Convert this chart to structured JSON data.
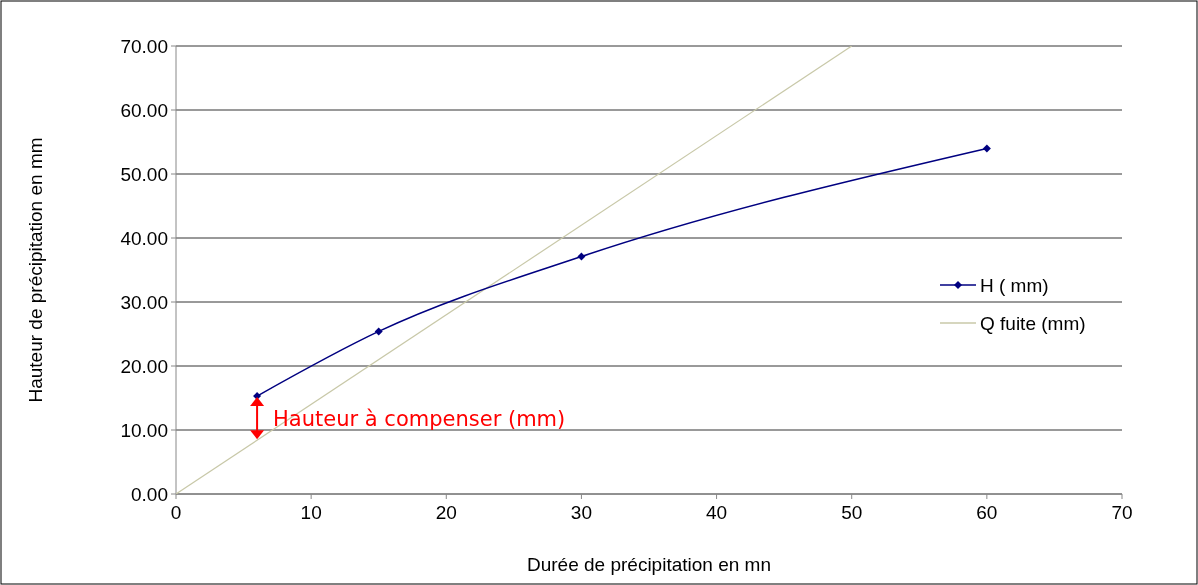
{
  "chart_data": {
    "type": "line",
    "xlabel": "Durée de précipitation en mn",
    "ylabel": "Hauteur de précipitation en mm",
    "xlim": [
      0,
      70
    ],
    "xticks": [
      0,
      10,
      20,
      30,
      40,
      50,
      60,
      70
    ],
    "ylim": [
      0,
      70
    ],
    "yticks": [
      {
        "value": 0,
        "label": "0.00"
      },
      {
        "value": 10,
        "label": "10.00"
      },
      {
        "value": 20,
        "label": "20.00"
      },
      {
        "value": 30,
        "label": "30.00"
      },
      {
        "value": 40,
        "label": "40.00"
      },
      {
        "value": 50,
        "label": "50.00"
      },
      {
        "value": 60,
        "label": "60.00"
      },
      {
        "value": 70,
        "label": "70.00"
      }
    ],
    "grid": "y",
    "legend": "right",
    "series": [
      {
        "name": "H ( mm)",
        "color": "#000080",
        "x": [
          6,
          15,
          30,
          60
        ],
        "values": [
          15.3,
          25.4,
          37.1,
          54.0
        ],
        "marker": "diamond",
        "line_style": "solid"
      },
      {
        "name": "Q fuite (mm)",
        "color": "#c8c8a8",
        "x": [
          0,
          50
        ],
        "values": [
          0,
          70
        ],
        "marker": "none",
        "line_style": "solid"
      }
    ],
    "annotations": [
      "Hauteur à compenser (mm)"
    ]
  }
}
